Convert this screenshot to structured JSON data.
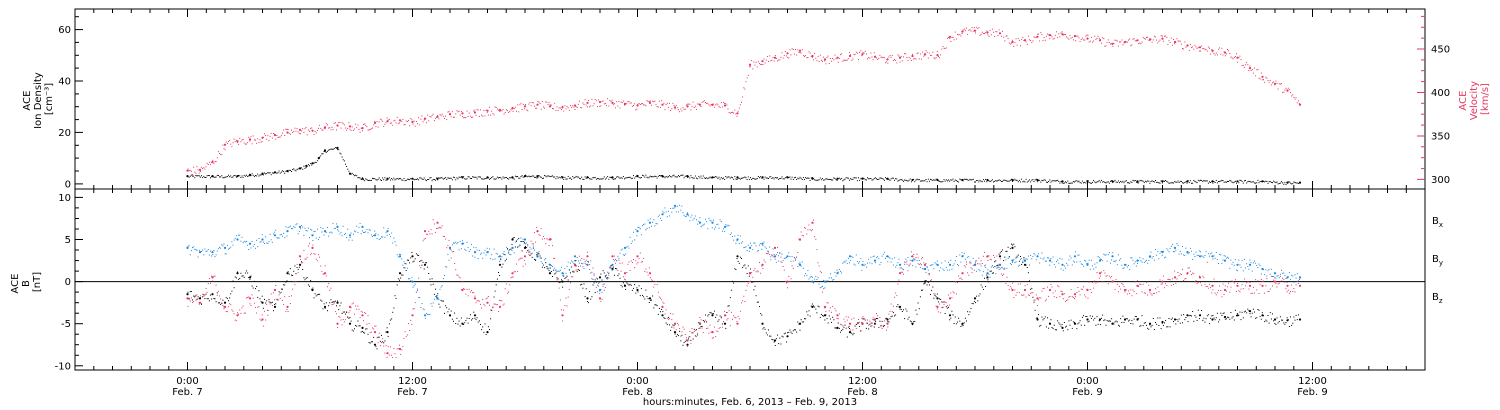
{
  "chart_data": [
    {
      "type": "scatter",
      "panel": "plasma",
      "ylabel_left": [
        "ACE",
        "Ion Density",
        "[cm⁻³]"
      ],
      "ylabel_right": [
        "ACE",
        "Velocity",
        "[km/s]"
      ],
      "ylim_left": [
        -2,
        68
      ],
      "yticks_left": [
        0,
        20,
        40,
        60
      ],
      "ylim_right": [
        289,
        496
      ],
      "yticks_right": [
        300,
        350,
        400,
        450
      ],
      "grid": false,
      "series": [
        {
          "axis": "left",
          "color": "#000000",
          "x": [
            0,
            4,
            8,
            10,
            12,
            14,
            16,
            18,
            19,
            20,
            21,
            22,
            24,
            26,
            28,
            32,
            36,
            40,
            44,
            48,
            52,
            54,
            56,
            60,
            64,
            68,
            72,
            76,
            80,
            84,
            88,
            92,
            96,
            100,
            104,
            108,
            112,
            116,
            120,
            124,
            128,
            132,
            136,
            140,
            144,
            148,
            152,
            156,
            160,
            164,
            168,
            172,
            176,
            178
          ],
          "y": [
            3,
            3,
            3,
            3.5,
            4,
            4.5,
            5,
            6,
            7,
            8,
            10,
            13,
            14,
            4,
            2,
            2,
            2,
            2,
            2.5,
            2.5,
            2.5,
            3,
            3,
            2.5,
            2.5,
            2.5,
            3,
            3,
            3,
            2.5,
            2.5,
            2.5,
            2.5,
            2,
            2,
            2,
            2,
            1.5,
            1.5,
            1.5,
            1.5,
            1.5,
            1.5,
            1,
            1,
            1,
            1,
            1,
            1,
            1,
            1,
            1,
            0.5,
            0.5
          ]
        },
        {
          "axis": "right",
          "color": "#e8365f",
          "x": [
            0,
            2,
            4,
            6,
            8,
            10,
            12,
            14,
            16,
            18,
            20,
            22,
            24,
            26,
            28,
            30,
            32,
            34,
            36,
            38,
            40,
            42,
            44,
            46,
            48,
            50,
            52,
            54,
            56,
            58,
            60,
            62,
            64,
            66,
            68,
            70,
            72,
            74,
            76,
            78,
            80,
            82,
            84,
            86,
            88,
            90,
            92,
            94,
            96,
            98,
            100,
            102,
            104,
            106,
            108,
            110,
            112,
            114,
            116,
            118,
            120,
            122,
            124,
            126,
            128,
            130,
            132,
            134,
            136,
            138,
            140,
            142,
            144,
            146,
            148,
            150,
            152,
            154,
            156,
            158,
            160,
            162,
            164,
            166,
            168,
            170,
            172,
            174,
            176,
            178
          ],
          "y": [
            310,
            311,
            320,
            340,
            344,
            346,
            348,
            351,
            354,
            357,
            356,
            360,
            362,
            361,
            359,
            365,
            367,
            368,
            366,
            370,
            372,
            375,
            376,
            377,
            379,
            380,
            382,
            384,
            386,
            384,
            383,
            385,
            388,
            389,
            388,
            387,
            385,
            388,
            386,
            383,
            384,
            386,
            386,
            385,
            376,
            432,
            436,
            440,
            445,
            448,
            442,
            438,
            440,
            442,
            444,
            441,
            438,
            440,
            442,
            444,
            443,
            464,
            470,
            471,
            469,
            468,
            458,
            460,
            464,
            466,
            467,
            465,
            462,
            460,
            456,
            458,
            460,
            461,
            462,
            458,
            454,
            452,
            448,
            446,
            440,
            428,
            418,
            410,
            402,
            386
          ]
        }
      ]
    },
    {
      "type": "scatter",
      "panel": "magnetic field",
      "ylabel": [
        "ACE",
        "B",
        "[nT]"
      ],
      "ylim": [
        -10.5,
        11
      ],
      "yticks": [
        -10,
        -5,
        0,
        5,
        10
      ],
      "zero_line": true,
      "grid": false,
      "legend": [
        "Bx",
        "By",
        "Bz"
      ],
      "legend_position": "right",
      "series": [
        {
          "name": "Bx",
          "color": "#000000",
          "x": [
            0,
            2,
            4,
            6,
            8,
            10,
            12,
            14,
            16,
            18,
            20,
            22,
            24,
            26,
            28,
            30,
            32,
            34,
            36,
            38,
            40,
            42,
            44,
            46,
            48,
            50,
            52,
            54,
            56,
            58,
            60,
            62,
            64,
            66,
            68,
            70,
            72,
            74,
            76,
            78,
            80,
            82,
            84,
            86,
            88,
            90,
            92,
            94,
            96,
            98,
            100,
            102,
            104,
            106,
            108,
            110,
            112,
            114,
            116,
            118,
            120,
            122,
            124,
            126,
            128,
            130,
            132,
            134,
            136,
            138,
            140,
            142,
            144,
            146,
            148,
            150,
            152,
            154,
            156,
            158,
            160,
            162,
            164,
            166,
            168,
            170,
            172,
            174,
            176,
            178
          ],
          "y": [
            -1.5,
            -2,
            -1.5,
            -2.5,
            1,
            0.5,
            -2.5,
            -3,
            1,
            2,
            -1,
            -3,
            -2.5,
            -5,
            -5.5,
            -7.5,
            -6,
            1,
            3,
            2,
            -2,
            -4,
            -5,
            -4,
            -6,
            2,
            5,
            4,
            3,
            1,
            0,
            2,
            -2,
            0.5,
            1.5,
            -0.5,
            -1,
            -2,
            -4,
            -6,
            -7.5,
            -5,
            -4,
            -5,
            3,
            1,
            -5,
            -7,
            -6.5,
            -5,
            -3,
            -4,
            -5.5,
            -6,
            -5,
            -5,
            -4.5,
            -3,
            -5,
            0,
            -2,
            -4,
            -5,
            -2,
            0.5,
            3,
            4,
            2,
            -4.5,
            -5,
            -5.5,
            -5,
            -4.5,
            -4.5,
            -5,
            -4.5,
            -4.5,
            -5,
            -4.8,
            -4.5,
            -4,
            -4,
            -4.5,
            -4.2,
            -4,
            -3.5,
            -4,
            -4.5,
            -4.6,
            -4.5
          ]
        },
        {
          "name": "By",
          "color": "#1b87e0",
          "x": [
            0,
            2,
            4,
            6,
            8,
            10,
            12,
            14,
            16,
            18,
            20,
            22,
            24,
            26,
            28,
            30,
            32,
            34,
            36,
            38,
            40,
            42,
            44,
            46,
            48,
            50,
            52,
            54,
            56,
            58,
            60,
            62,
            64,
            66,
            68,
            70,
            72,
            74,
            76,
            78,
            80,
            82,
            84,
            86,
            88,
            90,
            92,
            94,
            96,
            98,
            100,
            102,
            104,
            106,
            108,
            110,
            112,
            114,
            116,
            118,
            120,
            122,
            124,
            126,
            128,
            130,
            132,
            134,
            136,
            138,
            140,
            142,
            144,
            146,
            148,
            150,
            152,
            154,
            156,
            158,
            160,
            162,
            164,
            166,
            168,
            170,
            172,
            174,
            176,
            178
          ],
          "y": [
            4,
            3.5,
            3.5,
            4,
            5,
            4.5,
            5,
            5.5,
            6,
            6.5,
            5.5,
            6,
            6.5,
            5.5,
            6.5,
            5.5,
            6,
            3,
            0,
            -4,
            -2,
            4,
            4.5,
            3.5,
            3.5,
            3,
            4,
            5,
            3,
            2,
            1,
            3,
            2,
            -1,
            2,
            4,
            6,
            7,
            8,
            9,
            8,
            7,
            7,
            6.5,
            5,
            4,
            4.5,
            3,
            3,
            2,
            0,
            0,
            1,
            3,
            2,
            2.5,
            3,
            2,
            2.5,
            1.5,
            2,
            2,
            3,
            2,
            1,
            2,
            2.5,
            2.5,
            3,
            2.5,
            2,
            3,
            2,
            2.5,
            3,
            2,
            2.5,
            3,
            3.5,
            4,
            3.5,
            3,
            3,
            2.5,
            2,
            2,
            1.5,
            1,
            0.5,
            0.5
          ]
        },
        {
          "name": "Bz",
          "color": "#e8365f",
          "x": [
            0,
            2,
            4,
            6,
            8,
            10,
            12,
            14,
            16,
            18,
            20,
            22,
            24,
            26,
            28,
            30,
            32,
            34,
            36,
            38,
            40,
            42,
            44,
            46,
            48,
            50,
            52,
            54,
            56,
            58,
            60,
            62,
            64,
            66,
            68,
            70,
            72,
            74,
            76,
            78,
            80,
            82,
            84,
            86,
            88,
            90,
            92,
            94,
            96,
            98,
            100,
            102,
            104,
            106,
            108,
            110,
            112,
            114,
            116,
            118,
            120,
            122,
            124,
            126,
            128,
            130,
            132,
            134,
            136,
            138,
            140,
            142,
            144,
            146,
            148,
            150,
            152,
            154,
            156,
            158,
            160,
            162,
            164,
            166,
            168,
            170,
            172,
            174,
            176,
            178
          ],
          "y": [
            -2,
            -2.5,
            0.5,
            -3,
            -4,
            -2,
            -4.5,
            -1,
            -3,
            3,
            4,
            1,
            -5,
            -3,
            -4,
            -6,
            -8.5,
            -8,
            -4,
            6,
            7,
            4,
            -1,
            -2,
            -2.5,
            -3,
            1,
            3,
            6,
            5,
            -4,
            2,
            3,
            -2,
            3,
            1,
            3,
            1,
            -3,
            -5,
            -7,
            -5,
            -6,
            -4,
            -5,
            1,
            2,
            4,
            0,
            5,
            7,
            -3,
            -4,
            -5,
            -5,
            -4.5,
            -5,
            1,
            3,
            2,
            -3,
            -2,
            1,
            2,
            3,
            2,
            -1,
            -1,
            -2,
            -1,
            -1.5,
            -1.5,
            -1,
            1,
            0,
            -1,
            -0.5,
            -1,
            0,
            0.5,
            1,
            0.5,
            -0.5,
            -1,
            -0.5,
            -0.5,
            -0.5,
            0,
            -0.5,
            -0.5
          ]
        }
      ]
    }
  ],
  "x_axis": {
    "range_hours": [
      -18,
      198
    ],
    "ticks": [
      {
        "hours": 0,
        "time": "0:00",
        "date": "Feb. 7"
      },
      {
        "hours": 36,
        "time": "12:00",
        "date": "Feb. 7"
      },
      {
        "hours": 72,
        "time": "0:00",
        "date": "Feb. 8"
      },
      {
        "hours": 108,
        "time": "12:00",
        "date": "Feb. 8"
      },
      {
        "hours": 144,
        "time": "0:00",
        "date": "Feb. 9"
      },
      {
        "hours": 180,
        "time": "12:00",
        "date": "Feb. 9"
      }
    ],
    "xlabel": "hours:minutes, Feb.  6, 2013 – Feb.  9, 2013"
  },
  "legend_labels": {
    "Bx": {
      "base": "B",
      "sub": "x"
    },
    "By": {
      "base": "B",
      "sub": "y"
    },
    "Bz": {
      "base": "B",
      "sub": "z"
    }
  }
}
